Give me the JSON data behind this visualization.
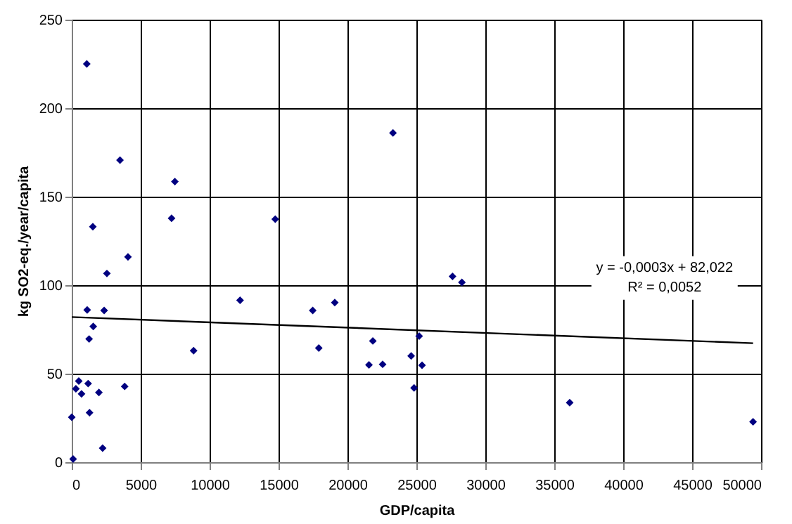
{
  "chart_data": {
    "type": "scatter",
    "xlabel": "GDP/capita",
    "ylabel": "kg SO2-eq./year/capita",
    "xlim": [
      0,
      50000
    ],
    "xticks": [
      0,
      5000,
      10000,
      15000,
      20000,
      25000,
      30000,
      35000,
      40000,
      45000,
      50000
    ],
    "ylim": [
      0,
      250
    ],
    "yticks": [
      0,
      50,
      100,
      150,
      200,
      250
    ],
    "grid": true,
    "series": [
      {
        "color": "#000080",
        "marker": "diamond",
        "x": [
          1090,
          3500,
          7480,
          7240,
          1530,
          4080,
          2550,
          1120,
          2350,
          1560,
          1260,
          8840,
          510,
          300,
          710,
          1190,
          1970,
          3840,
          1290,
          0,
          2240,
          100,
          12210,
          14760,
          23300,
          27620,
          28300,
          19080,
          17480,
          17920,
          21840,
          25200,
          21560,
          22550,
          24620,
          25410,
          24830,
          36120,
          49420
        ],
        "values": [
          225,
          170.6,
          158.5,
          137.8,
          133,
          116,
          106.6,
          86,
          85.7,
          76.7,
          69.6,
          63,
          45.8,
          41.5,
          38.6,
          44.4,
          39.4,
          42.8,
          28,
          25.4,
          7.9,
          1.8,
          91.5,
          137.3,
          186,
          105,
          101.6,
          90.2,
          85.7,
          64.5,
          68.5,
          71.2,
          55,
          55.3,
          60,
          54.8,
          42,
          33.6,
          22.8
        ]
      },
      {
        "type": "line",
        "color": "#000000",
        "line_style": "solid",
        "marker": "none",
        "x": [
          0,
          49420
        ],
        "values": [
          82.0,
          67.2
        ]
      }
    ],
    "annotations": [
      "y = -0,0003x + 82,022",
      "R² = 0,0052"
    ]
  }
}
